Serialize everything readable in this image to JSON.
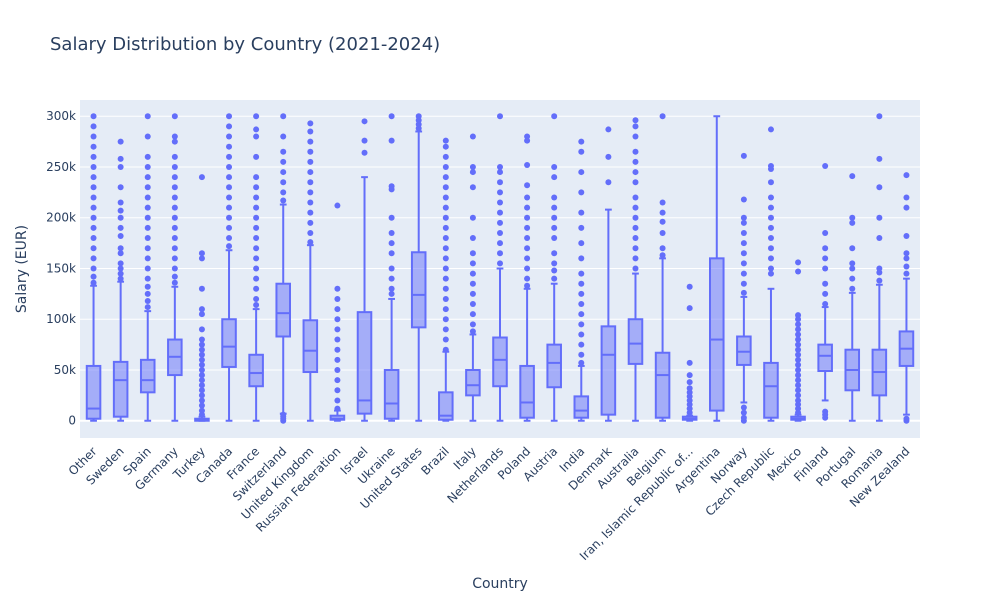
{
  "chart_data": {
    "type": "box",
    "title": "Salary Distribution by Country (2021-2024)",
    "xlabel": "Country",
    "ylabel": "Salary (EUR)",
    "ylim": [
      -17000,
      316000
    ],
    "yticks": [
      0,
      50000,
      100000,
      150000,
      200000,
      250000,
      300000
    ],
    "ytick_labels": [
      "0",
      "50k",
      "100k",
      "150k",
      "200k",
      "250k",
      "300k"
    ],
    "grid": true,
    "color": "#636efa",
    "plot_bg": "#e5ecf6",
    "categories": [
      "Other",
      "Sweden",
      "Spain",
      "Germany",
      "Turkey",
      "Canada",
      "France",
      "Switzerland",
      "United Kingdom",
      "Russian Federation",
      "Israel",
      "Ukraine",
      "United States",
      "Brazil",
      "Italy",
      "Netherlands",
      "Poland",
      "Austria",
      "India",
      "Denmark",
      "Australia",
      "Belgium",
      "Iran, Islamic Republic of...",
      "Argentina",
      "Norway",
      "Czech Republic",
      "Mexico",
      "Finland",
      "Portugal",
      "Romania",
      "New Zealand"
    ],
    "boxes": [
      {
        "min": 0,
        "q1": 2000,
        "median": 12000,
        "q3": 54000,
        "max": 133000,
        "outliers": [
          136000,
          142000,
          150000,
          160000,
          170000,
          180000,
          190000,
          200000,
          210000,
          220000,
          230000,
          240000,
          250000,
          260000,
          270000,
          280000,
          290000,
          300000
        ]
      },
      {
        "min": 0,
        "q1": 4000,
        "median": 40000,
        "q3": 58000,
        "max": 137000,
        "outliers": [
          140000,
          145000,
          150000,
          155000,
          165000,
          170000,
          182000,
          190000,
          200000,
          207000,
          215000,
          230000,
          250000,
          258000,
          275000
        ]
      },
      {
        "min": 0,
        "q1": 28000,
        "median": 40000,
        "q3": 60000,
        "max": 108000,
        "outliers": [
          112000,
          118000,
          125000,
          132000,
          140000,
          150000,
          160000,
          170000,
          180000,
          190000,
          200000,
          210000,
          220000,
          230000,
          240000,
          250000,
          260000,
          280000,
          300000
        ]
      },
      {
        "min": 0,
        "q1": 45000,
        "median": 63000,
        "q3": 80000,
        "max": 132000,
        "outliers": [
          136000,
          142000,
          150000,
          160000,
          170000,
          180000,
          190000,
          200000,
          210000,
          220000,
          230000,
          240000,
          250000,
          260000,
          275000,
          280000,
          300000
        ]
      },
      {
        "min": 0,
        "q1": 0,
        "median": 1000,
        "q3": 2000,
        "max": 4000,
        "outliers": [
          6000,
          10000,
          15000,
          20000,
          25000,
          30000,
          35000,
          40000,
          45000,
          50000,
          55000,
          60000,
          65000,
          70000,
          75000,
          80000,
          90000,
          105000,
          110000,
          130000,
          160000,
          165000,
          240000
        ]
      },
      {
        "min": 0,
        "q1": 53000,
        "median": 73000,
        "q3": 100000,
        "max": 168000,
        "outliers": [
          172000,
          180000,
          190000,
          200000,
          210000,
          220000,
          230000,
          240000,
          250000,
          260000,
          270000,
          280000,
          290000,
          300000
        ]
      },
      {
        "min": 0,
        "q1": 34000,
        "median": 47000,
        "q3": 65000,
        "max": 110000,
        "outliers": [
          114000,
          120000,
          130000,
          140000,
          150000,
          160000,
          170000,
          180000,
          190000,
          200000,
          210000,
          220000,
          230000,
          240000,
          260000,
          280000,
          287000,
          300000
        ]
      },
      {
        "min": 7000,
        "q1": 83000,
        "median": 106000,
        "q3": 135000,
        "max": 213000,
        "outliers": [
          0,
          2000,
          4000,
          6000,
          217000,
          225000,
          235000,
          245000,
          255000,
          265000,
          280000,
          300000
        ]
      },
      {
        "min": 0,
        "q1": 48000,
        "median": 69000,
        "q3": 99000,
        "max": 173000,
        "outliers": [
          176000,
          185000,
          195000,
          205000,
          215000,
          225000,
          235000,
          245000,
          255000,
          265000,
          275000,
          285000,
          293000
        ]
      },
      {
        "min": 0,
        "q1": 1000,
        "median": 2000,
        "q3": 5000,
        "max": 10000,
        "outliers": [
          12000,
          20000,
          30000,
          40000,
          50000,
          60000,
          70000,
          80000,
          90000,
          100000,
          110000,
          120000,
          130000,
          212000
        ]
      },
      {
        "min": 0,
        "q1": 7000,
        "median": 20000,
        "q3": 107000,
        "max": 240000,
        "outliers": [
          264000,
          276000,
          295000
        ]
      },
      {
        "min": 0,
        "q1": 2000,
        "median": 17000,
        "q3": 50000,
        "max": 120000,
        "outliers": [
          125000,
          130000,
          140000,
          150000,
          165000,
          175000,
          185000,
          200000,
          228000,
          231000,
          276000,
          300000
        ]
      },
      {
        "min": 0,
        "q1": 92000,
        "median": 124000,
        "q3": 166000,
        "max": 285000,
        "outliers": [
          288000,
          292000,
          296000,
          300000
        ]
      },
      {
        "min": 0,
        "q1": 1000,
        "median": 5000,
        "q3": 28000,
        "max": 68000,
        "outliers": [
          70000,
          80000,
          90000,
          100000,
          110000,
          120000,
          130000,
          140000,
          150000,
          160000,
          170000,
          180000,
          190000,
          200000,
          210000,
          220000,
          230000,
          240000,
          250000,
          260000,
          270000,
          276000
        ]
      },
      {
        "min": 0,
        "q1": 25000,
        "median": 35000,
        "q3": 50000,
        "max": 85000,
        "outliers": [
          88000,
          95000,
          105000,
          115000,
          125000,
          135000,
          145000,
          155000,
          165000,
          180000,
          200000,
          230000,
          245000,
          250000,
          280000
        ]
      },
      {
        "min": 0,
        "q1": 34000,
        "median": 60000,
        "q3": 82000,
        "max": 150000,
        "outliers": [
          155000,
          165000,
          175000,
          185000,
          195000,
          205000,
          215000,
          225000,
          235000,
          245000,
          250000,
          300000
        ]
      },
      {
        "min": 0,
        "q1": 3000,
        "median": 18000,
        "q3": 54000,
        "max": 130000,
        "outliers": [
          133000,
          140000,
          150000,
          160000,
          170000,
          180000,
          190000,
          200000,
          210000,
          220000,
          232000,
          252000,
          276000,
          280000
        ]
      },
      {
        "min": 0,
        "q1": 33000,
        "median": 57000,
        "q3": 75000,
        "max": 135000,
        "outliers": [
          140000,
          148000,
          155000,
          165000,
          180000,
          190000,
          200000,
          210000,
          220000,
          240000,
          250000,
          300000
        ]
      },
      {
        "min": 0,
        "q1": 3000,
        "median": 10000,
        "q3": 24000,
        "max": 54000,
        "outliers": [
          57000,
          65000,
          75000,
          85000,
          95000,
          105000,
          115000,
          125000,
          135000,
          145000,
          160000,
          175000,
          190000,
          205000,
          225000,
          245000,
          265000,
          275000
        ]
      },
      {
        "min": 0,
        "q1": 6000,
        "median": 65000,
        "q3": 93000,
        "max": 208000,
        "outliers": [
          235000,
          260000,
          287000
        ]
      },
      {
        "min": 0,
        "q1": 56000,
        "median": 76000,
        "q3": 100000,
        "max": 145000,
        "outliers": [
          150000,
          160000,
          170000,
          180000,
          190000,
          200000,
          210000,
          220000,
          235000,
          245000,
          255000,
          265000,
          280000,
          290000,
          296000
        ]
      },
      {
        "min": 0,
        "q1": 3000,
        "median": 45000,
        "q3": 67000,
        "max": 160000,
        "outliers": [
          163000,
          170000,
          185000,
          196000,
          205000,
          215000,
          300000
        ]
      },
      {
        "min": 0,
        "q1": 1000,
        "median": 2000,
        "q3": 4000,
        "max": 5000,
        "outliers": [
          8000,
          12000,
          16000,
          20000,
          24000,
          28000,
          32000,
          38000,
          45000,
          57000,
          111000,
          132000
        ]
      },
      {
        "min": 0,
        "q1": 10000,
        "median": 80000,
        "q3": 160000,
        "max": 300000,
        "outliers": []
      },
      {
        "min": 18000,
        "q1": 55000,
        "median": 68000,
        "q3": 83000,
        "max": 122000,
        "outliers": [
          0,
          3000,
          8000,
          13000,
          126000,
          135000,
          145000,
          155000,
          165000,
          175000,
          185000,
          195000,
          200000,
          218000,
          261000
        ]
      },
      {
        "min": 0,
        "q1": 3000,
        "median": 34000,
        "q3": 57000,
        "max": 130000,
        "outliers": [
          145000,
          150000,
          160000,
          170000,
          180000,
          190000,
          200000,
          210000,
          220000,
          235000,
          248000,
          251000,
          287000
        ]
      },
      {
        "min": 0,
        "q1": 1000,
        "median": 2000,
        "q3": 4000,
        "max": 6000,
        "outliers": [
          8000,
          12000,
          16000,
          20000,
          25000,
          30000,
          35000,
          40000,
          45000,
          50000,
          55000,
          60000,
          65000,
          70000,
          75000,
          80000,
          85000,
          90000,
          95000,
          100000,
          104000,
          147000,
          156000
        ]
      },
      {
        "min": 20000,
        "q1": 49000,
        "median": 64000,
        "q3": 75000,
        "max": 112000,
        "outliers": [
          3000,
          6000,
          9000,
          115000,
          125000,
          135000,
          150000,
          160000,
          170000,
          185000,
          251000
        ]
      },
      {
        "min": 0,
        "q1": 30000,
        "median": 50000,
        "q3": 70000,
        "max": 126000,
        "outliers": [
          130000,
          140000,
          150000,
          155000,
          170000,
          195000,
          200000,
          241000
        ]
      },
      {
        "min": 0,
        "q1": 25000,
        "median": 48000,
        "q3": 70000,
        "max": 134000,
        "outliers": [
          138000,
          146000,
          150000,
          180000,
          200000,
          230000,
          258000,
          300000
        ]
      },
      {
        "min": 6000,
        "q1": 54000,
        "median": 71000,
        "q3": 88000,
        "max": 140000,
        "outliers": [
          0,
          2000,
          145000,
          152000,
          160000,
          165000,
          182000,
          210000,
          220000,
          242000
        ]
      }
    ]
  }
}
